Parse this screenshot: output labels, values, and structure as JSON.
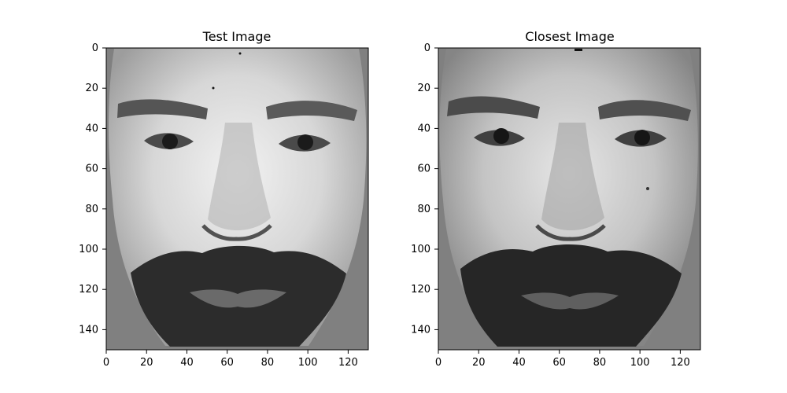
{
  "chart_data": [
    {
      "type": "image",
      "title": "Test Image",
      "xlim": [
        0,
        130
      ],
      "ylim": [
        150,
        0
      ],
      "xticks": [
        0,
        20,
        40,
        60,
        80,
        100,
        120
      ],
      "yticks": [
        0,
        20,
        40,
        60,
        80,
        100,
        120,
        140
      ],
      "image_size": [
        130,
        150
      ],
      "colormap": "gray",
      "content": "grayscale face, masked with gray background"
    },
    {
      "type": "image",
      "title": "Closest Image",
      "xlim": [
        0,
        130
      ],
      "ylim": [
        150,
        0
      ],
      "xticks": [
        0,
        20,
        40,
        60,
        80,
        100,
        120
      ],
      "yticks": [
        0,
        20,
        40,
        60,
        80,
        100,
        120,
        140
      ],
      "image_size": [
        130,
        150
      ],
      "colormap": "gray",
      "content": "grayscale face, masked with gray background"
    }
  ]
}
